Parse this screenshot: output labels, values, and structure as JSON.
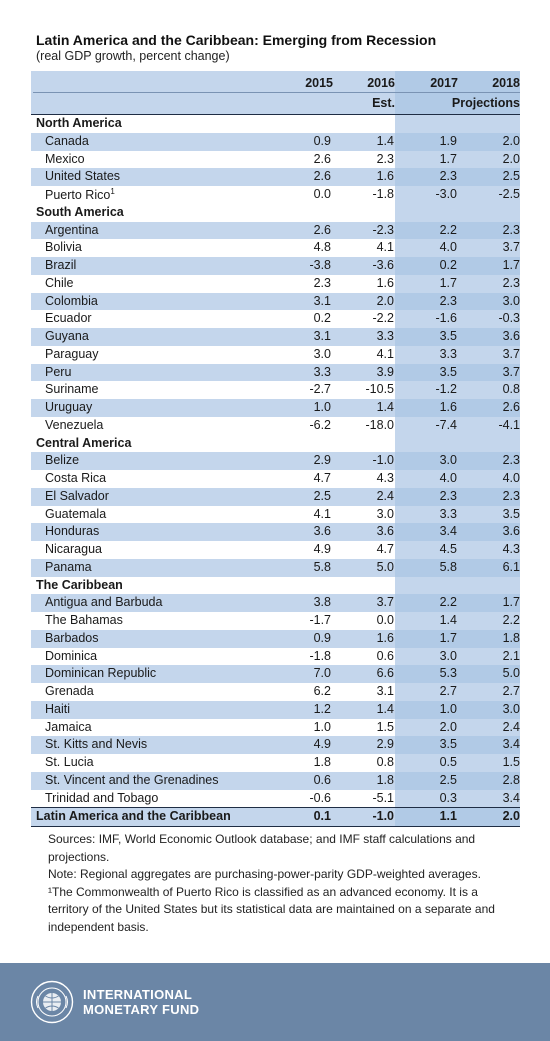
{
  "title": "Latin America and the Caribbean: Emerging from Recession",
  "subtitle": "(real GDP growth, percent change)",
  "header": {
    "years": [
      "2015",
      "2016",
      "2017",
      "2018"
    ],
    "est_label": "Est.",
    "projections_label": "Projections"
  },
  "sections": [
    {
      "name": "North America",
      "rows": [
        {
          "country": "Canada",
          "values": [
            "0.9",
            "1.4",
            "1.9",
            "2.0"
          ]
        },
        {
          "country": "Mexico",
          "values": [
            "2.6",
            "2.3",
            "1.7",
            "2.0"
          ]
        },
        {
          "country": "United States",
          "values": [
            "2.6",
            "1.6",
            "2.3",
            "2.5"
          ]
        },
        {
          "country": "Puerto Rico",
          "footnote": "1",
          "values": [
            "0.0",
            "-1.8",
            "-3.0",
            "-2.5"
          ]
        }
      ]
    },
    {
      "name": "South America",
      "rows": [
        {
          "country": "Argentina",
          "values": [
            "2.6",
            "-2.3",
            "2.2",
            "2.3"
          ]
        },
        {
          "country": "Bolivia",
          "values": [
            "4.8",
            "4.1",
            "4.0",
            "3.7"
          ]
        },
        {
          "country": "Brazil",
          "values": [
            "-3.8",
            "-3.6",
            "0.2",
            "1.7"
          ]
        },
        {
          "country": "Chile",
          "values": [
            "2.3",
            "1.6",
            "1.7",
            "2.3"
          ]
        },
        {
          "country": "Colombia",
          "values": [
            "3.1",
            "2.0",
            "2.3",
            "3.0"
          ]
        },
        {
          "country": "Ecuador",
          "values": [
            "0.2",
            "-2.2",
            "-1.6",
            "-0.3"
          ]
        },
        {
          "country": "Guyana",
          "values": [
            "3.1",
            "3.3",
            "3.5",
            "3.6"
          ]
        },
        {
          "country": "Paraguay",
          "values": [
            "3.0",
            "4.1",
            "3.3",
            "3.7"
          ]
        },
        {
          "country": "Peru",
          "values": [
            "3.3",
            "3.9",
            "3.5",
            "3.7"
          ]
        },
        {
          "country": "Suriname",
          "values": [
            "-2.7",
            "-10.5",
            "-1.2",
            "0.8"
          ]
        },
        {
          "country": "Uruguay",
          "values": [
            "1.0",
            "1.4",
            "1.6",
            "2.6"
          ]
        },
        {
          "country": "Venezuela",
          "values": [
            "-6.2",
            "-18.0",
            "-7.4",
            "-4.1"
          ]
        }
      ]
    },
    {
      "name": "Central America",
      "rows": [
        {
          "country": "Belize",
          "values": [
            "2.9",
            "-1.0",
            "3.0",
            "2.3"
          ]
        },
        {
          "country": "Costa Rica",
          "values": [
            "4.7",
            "4.3",
            "4.0",
            "4.0"
          ]
        },
        {
          "country": "El Salvador",
          "values": [
            "2.5",
            "2.4",
            "2.3",
            "2.3"
          ]
        },
        {
          "country": "Guatemala",
          "values": [
            "4.1",
            "3.0",
            "3.3",
            "3.5"
          ]
        },
        {
          "country": "Honduras",
          "values": [
            "3.6",
            "3.6",
            "3.4",
            "3.6"
          ]
        },
        {
          "country": "Nicaragua",
          "values": [
            "4.9",
            "4.7",
            "4.5",
            "4.3"
          ]
        },
        {
          "country": "Panama",
          "values": [
            "5.8",
            "5.0",
            "5.8",
            "6.1"
          ]
        }
      ]
    },
    {
      "name": "The Caribbean",
      "rows": [
        {
          "country": "Antigua and Barbuda",
          "values": [
            "3.8",
            "3.7",
            "2.2",
            "1.7"
          ]
        },
        {
          "country": "The Bahamas",
          "values": [
            "-1.7",
            "0.0",
            "1.4",
            "2.2"
          ]
        },
        {
          "country": "Barbados",
          "values": [
            "0.9",
            "1.6",
            "1.7",
            "1.8"
          ]
        },
        {
          "country": "Dominica",
          "values": [
            "-1.8",
            "0.6",
            "3.0",
            "2.1"
          ]
        },
        {
          "country": "Dominican Republic",
          "values": [
            "7.0",
            "6.6",
            "5.3",
            "5.0"
          ]
        },
        {
          "country": "Grenada",
          "values": [
            "6.2",
            "3.1",
            "2.7",
            "2.7"
          ]
        },
        {
          "country": "Haiti",
          "values": [
            "1.2",
            "1.4",
            "1.0",
            "3.0"
          ]
        },
        {
          "country": "Jamaica",
          "values": [
            "1.0",
            "1.5",
            "2.0",
            "2.4"
          ]
        },
        {
          "country": "St. Kitts and Nevis",
          "values": [
            "4.9",
            "2.9",
            "3.5",
            "3.4"
          ]
        },
        {
          "country": "St. Lucia",
          "values": [
            "1.8",
            "0.8",
            "0.5",
            "1.5"
          ]
        },
        {
          "country": "St. Vincent and the Grenadines",
          "values": [
            "0.6",
            "1.8",
            "2.5",
            "2.8"
          ]
        },
        {
          "country": "Trinidad and Tobago",
          "values": [
            "-0.6",
            "-5.1",
            "0.3",
            "3.4"
          ]
        }
      ]
    }
  ],
  "total": {
    "country": "Latin America and the Caribbean",
    "values": [
      "0.1",
      "-1.0",
      "1.1",
      "2.0"
    ]
  },
  "notes": {
    "sources": "Sources: IMF, World Economic Outlook database; and IMF staff calculations and projections.",
    "note": "Note: Regional aggregates are purchasing-power-parity GDP-weighted averages.",
    "footnote": "¹The Commonwealth of Puerto Rico is classified as an advanced economy. It is a territory of the United States but its statistical data are maintained on a separate and independent basis."
  },
  "footer": {
    "brand_line1": "INTERNATIONAL",
    "brand_line2": "MONETARY FUND",
    "logo_icon": "imf-seal-icon",
    "background_color": "#6b86a6"
  }
}
